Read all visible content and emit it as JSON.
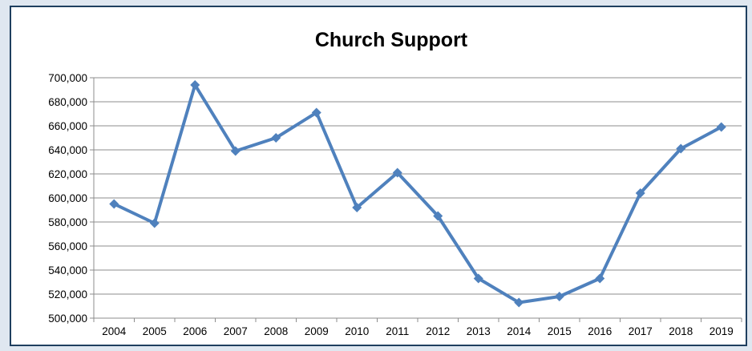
{
  "chart_data": {
    "type": "line",
    "title": "Church Support",
    "xlabel": "",
    "ylabel": "",
    "categories": [
      "2004",
      "2005",
      "2006",
      "2007",
      "2008",
      "2009",
      "2010",
      "2011",
      "2012",
      "2013",
      "2014",
      "2015",
      "2016",
      "2017",
      "2018",
      "2019"
    ],
    "series": [
      {
        "values": [
          595000,
          579000,
          694000,
          639000,
          650000,
          671000,
          592000,
          621000,
          585000,
          533000,
          513000,
          518000,
          533000,
          604000,
          641000,
          659000
        ],
        "color": "#4f81bd",
        "marker": "diamond"
      }
    ],
    "y_ticks": [
      "500,000",
      "520,000",
      "540,000",
      "560,000",
      "580,000",
      "600,000",
      "620,000",
      "640,000",
      "660,000",
      "680,000",
      "700,000"
    ],
    "ylim": [
      500000,
      700000
    ],
    "grid": "horizontal",
    "legend": "none"
  }
}
